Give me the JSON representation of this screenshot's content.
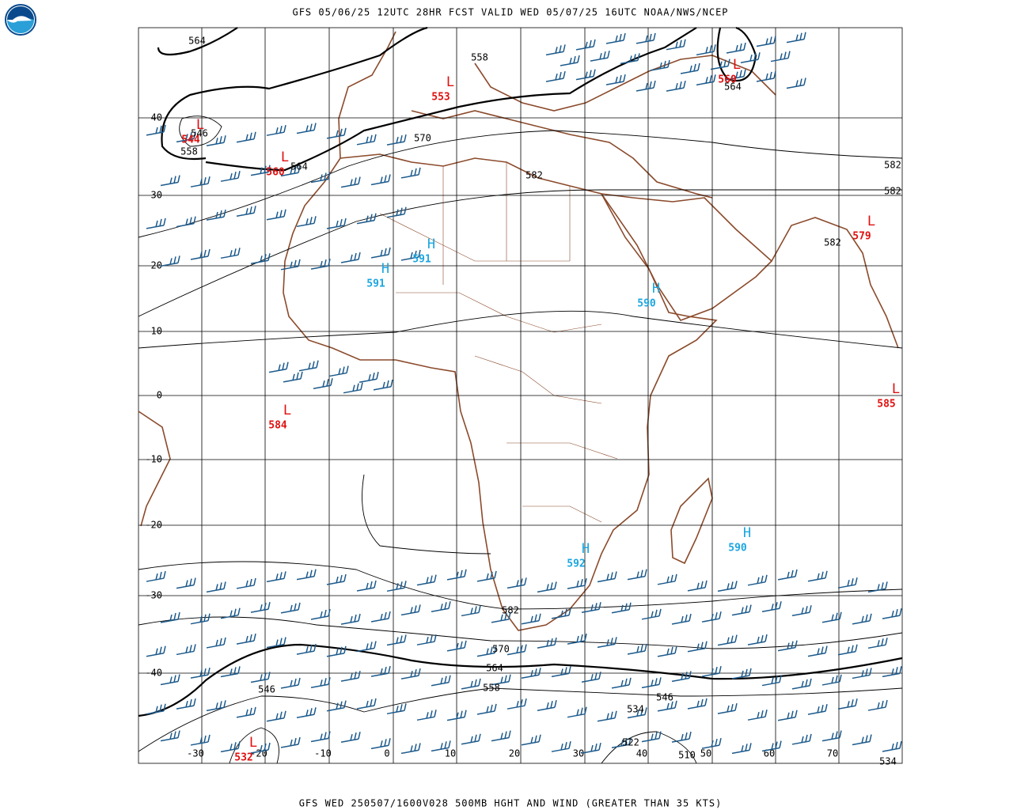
{
  "header": {
    "title": "GFS 05/06/25 12UTC 28HR FCST VALID WED 05/07/25 16UTC NOAA/NWS/NCEP"
  },
  "footer": {
    "caption": "GFS WED 250507/1600V028 500MB HGHT AND WIND (GREATER THAN 35 KTS)"
  },
  "map": {
    "lat_labels": [
      "40",
      "30",
      "20",
      "10",
      "0",
      "-10",
      "-20",
      "-30",
      "-40"
    ],
    "lon_labels": [
      "-30",
      "-20",
      "-10",
      "0",
      "10",
      "20",
      "30",
      "40",
      "50",
      "60",
      "70"
    ],
    "centers": [
      {
        "type": "L",
        "value": "544"
      },
      {
        "type": "L",
        "value": "560"
      },
      {
        "type": "L",
        "value": "553"
      },
      {
        "type": "L",
        "value": "560"
      },
      {
        "type": "H",
        "value": "591"
      },
      {
        "type": "H",
        "value": "591"
      },
      {
        "type": "H",
        "value": "590"
      },
      {
        "type": "L",
        "value": "579"
      },
      {
        "type": "L",
        "value": "585"
      },
      {
        "type": "L",
        "value": "584"
      },
      {
        "type": "H",
        "value": "592"
      },
      {
        "type": "H",
        "value": "590"
      },
      {
        "type": "L",
        "value": "532"
      }
    ],
    "contour_labels": [
      "564",
      "558",
      "564",
      "546",
      "558",
      "564",
      "570",
      "582",
      "582",
      "582",
      "582",
      "582",
      "570",
      "564",
      "558",
      "546",
      "534",
      "546",
      "522",
      "510",
      "534"
    ]
  }
}
